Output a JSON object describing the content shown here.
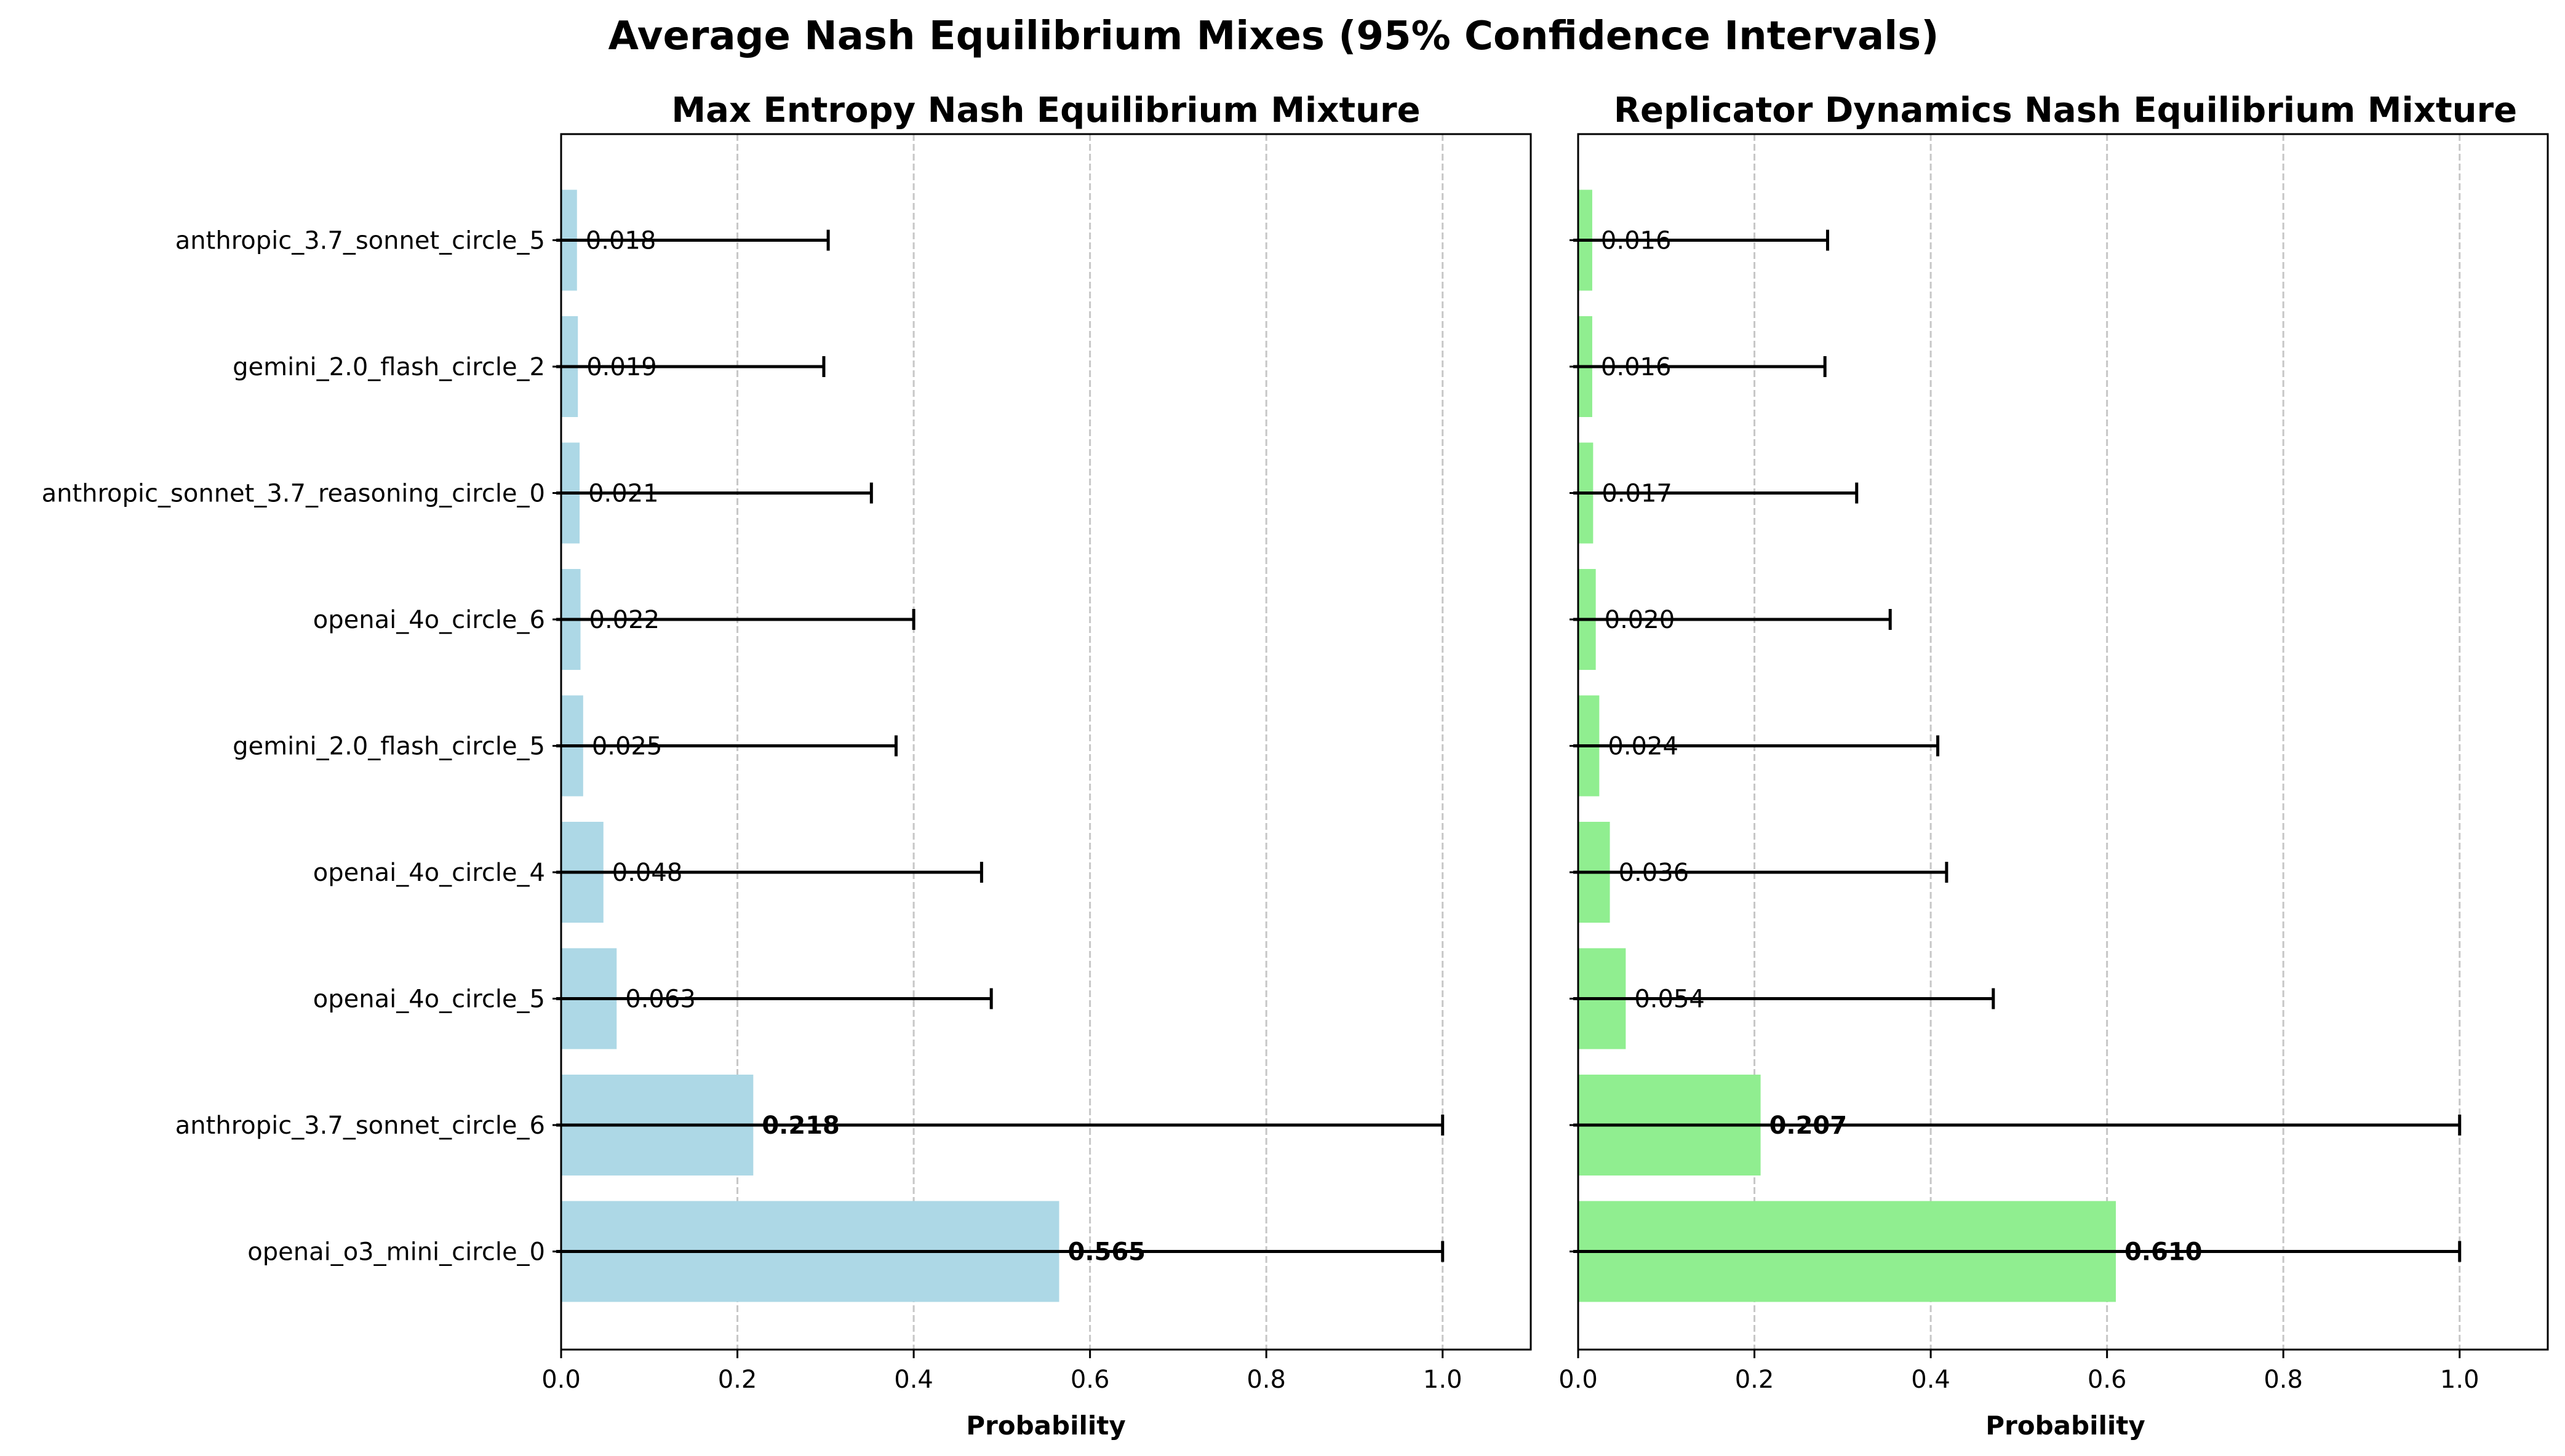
{
  "suptitle": "Average Nash Equilibrium Mixes (95% Confidence Intervals)",
  "colors": {
    "maxent_bar": "#add8e6",
    "replicator_bar": "#90ee90",
    "errorbar": "#000000",
    "grid": "#b0b0b0"
  },
  "chart_data": [
    {
      "type": "bar",
      "orientation": "horizontal",
      "title": "Max Entropy Nash Equilibrium Mixture",
      "xlabel": "Probability",
      "ylabel": "",
      "xlim": [
        0,
        1.1
      ],
      "xticks": [
        "0.0",
        "0.2",
        "0.4",
        "0.6",
        "0.8",
        "1.0"
      ],
      "grid": "x dashed",
      "categories": [
        "openai_o3_mini_circle_0",
        "anthropic_3.7_sonnet_circle_6",
        "openai_4o_circle_5",
        "openai_4o_circle_4",
        "gemini_2.0_flash_circle_5",
        "openai_4o_circle_6",
        "anthropic_sonnet_3.7_reasoning_circle_0",
        "gemini_2.0_flash_circle_2",
        "anthropic_3.7_sonnet_circle_5"
      ],
      "values": [
        0.565,
        0.218,
        0.063,
        0.048,
        0.025,
        0.022,
        0.021,
        0.019,
        0.018
      ],
      "value_labels": [
        "0.565",
        "0.218",
        "0.063",
        "0.048",
        "0.025",
        "0.022",
        "0.021",
        "0.019",
        "0.018"
      ],
      "bold_labels": [
        true,
        true,
        false,
        false,
        false,
        false,
        false,
        false,
        false
      ],
      "ci_lower": [
        0.0,
        0.0,
        0.0,
        0.0,
        0.0,
        0.0,
        0.0,
        0.0,
        0.0
      ],
      "ci_upper": [
        1.0,
        1.0,
        0.488,
        0.477,
        0.38,
        0.4,
        0.352,
        0.298,
        0.303
      ],
      "bar_color": "#add8e6"
    },
    {
      "type": "bar",
      "orientation": "horizontal",
      "title": "Replicator Dynamics Nash Equilibrium Mixture",
      "xlabel": "Probability",
      "ylabel": "",
      "xlim": [
        0,
        1.1
      ],
      "xticks": [
        "0.0",
        "0.2",
        "0.4",
        "0.6",
        "0.8",
        "1.0"
      ],
      "grid": "x dashed",
      "categories": [
        "openai_o3_mini_circle_0",
        "anthropic_3.7_sonnet_circle_6",
        "openai_4o_circle_5",
        "openai_4o_circle_4",
        "gemini_2.0_flash_circle_5",
        "openai_4o_circle_6",
        "anthropic_sonnet_3.7_reasoning_circle_0",
        "gemini_2.0_flash_circle_2",
        "anthropic_3.7_sonnet_circle_5"
      ],
      "values": [
        0.61,
        0.207,
        0.054,
        0.036,
        0.024,
        0.02,
        0.017,
        0.016,
        0.016
      ],
      "value_labels": [
        "0.610",
        "0.207",
        "0.054",
        "0.036",
        "0.024",
        "0.020",
        "0.017",
        "0.016",
        "0.016"
      ],
      "bold_labels": [
        true,
        true,
        false,
        false,
        false,
        false,
        false,
        false,
        false
      ],
      "ci_lower": [
        0.0,
        0.0,
        0.0,
        0.0,
        0.0,
        0.0,
        0.0,
        0.0,
        0.0
      ],
      "ci_upper": [
        1.0,
        1.0,
        0.471,
        0.418,
        0.408,
        0.354,
        0.316,
        0.28,
        0.283
      ],
      "bar_color": "#90ee90"
    }
  ]
}
